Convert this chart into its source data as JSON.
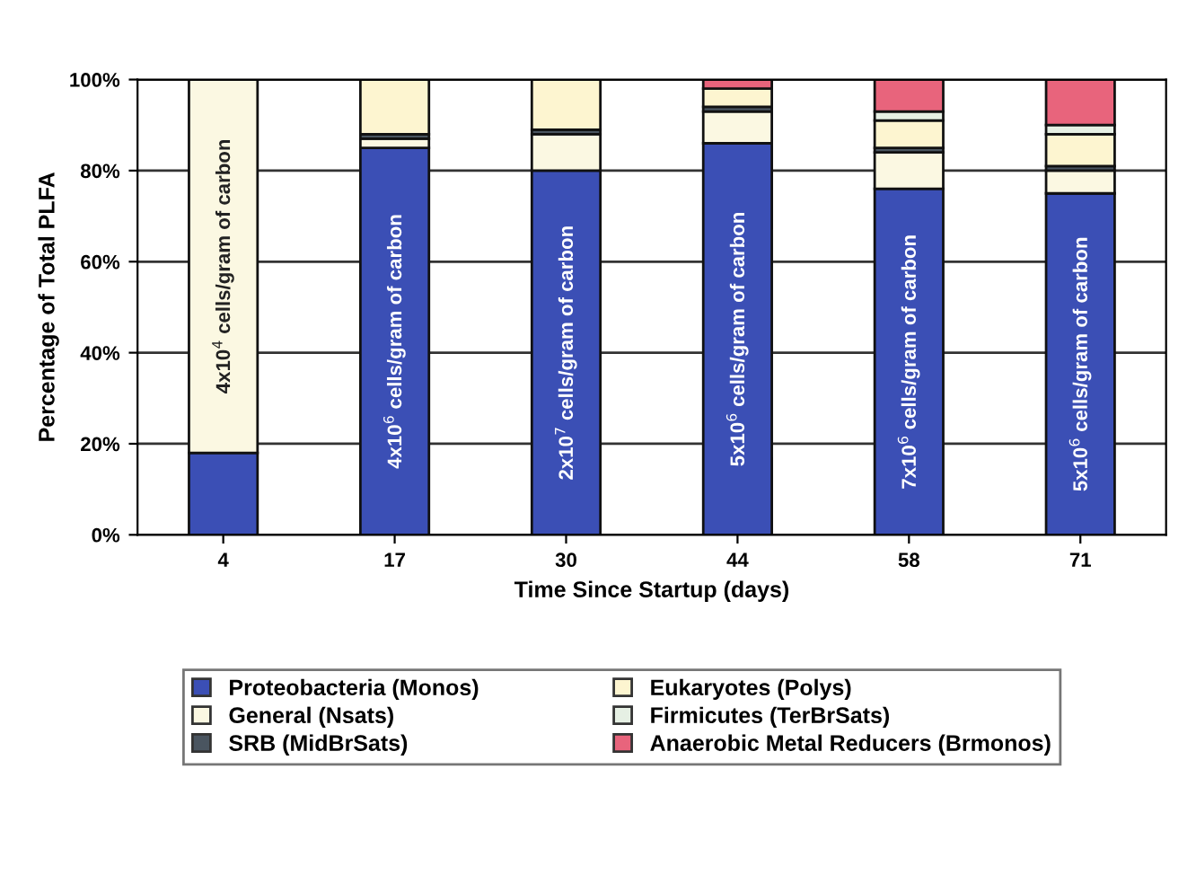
{
  "chart_data": {
    "type": "bar",
    "stacked": true,
    "xlabel": "Time Since Startup (days)",
    "ylabel": "Percentage of Total PLFA",
    "categories": [
      "4",
      "17",
      "30",
      "44",
      "58",
      "71"
    ],
    "series": [
      {
        "name": "Proteobacteria (Monos)",
        "color": "#3b4fb5",
        "values": [
          18,
          85,
          80,
          86,
          76,
          75
        ]
      },
      {
        "name": "General (Nsats)",
        "color": "#fbf8e2",
        "values": [
          82,
          2,
          8,
          7,
          8,
          5
        ]
      },
      {
        "name": "SRB (MidBrSats)",
        "color": "#4a5560",
        "values": [
          0,
          1,
          1,
          1,
          1,
          1
        ]
      },
      {
        "name": "Eukaryotes (Polys)",
        "color": "#fdf5d0",
        "values": [
          0,
          12,
          11,
          4,
          6,
          7
        ]
      },
      {
        "name": "Firmicutes (TerBrSats)",
        "color": "#e6f0e4",
        "values": [
          0,
          0,
          0,
          0,
          2,
          2
        ]
      },
      {
        "name": "Anaerobic Metal Reducers (Brmonos)",
        "color": "#e8647c",
        "values": [
          0,
          0,
          0,
          2,
          7,
          10
        ]
      }
    ],
    "ylim": [
      0,
      100
    ],
    "yticks": [
      {
        "value": 0,
        "label": "0%"
      },
      {
        "value": 20,
        "label": "20%"
      },
      {
        "value": 40,
        "label": "40%"
      },
      {
        "value": 60,
        "label": "60%"
      },
      {
        "value": 80,
        "label": "80%"
      },
      {
        "value": 100,
        "label": "100%"
      }
    ],
    "grid": "y",
    "legend": "bottom",
    "annotations": [
      "4x10$^{4}$ cells/gram of carbon",
      "4x10$^{6}$ cells/gram of carbon",
      "2x10$^{7}$ cells/gram of carbon",
      "5x10$^{6}$ cells/gram of carbon",
      "7x10$^{6}$ cells/gram of carbon",
      "5x10$^{6}$ cells/gram of carbon"
    ]
  }
}
